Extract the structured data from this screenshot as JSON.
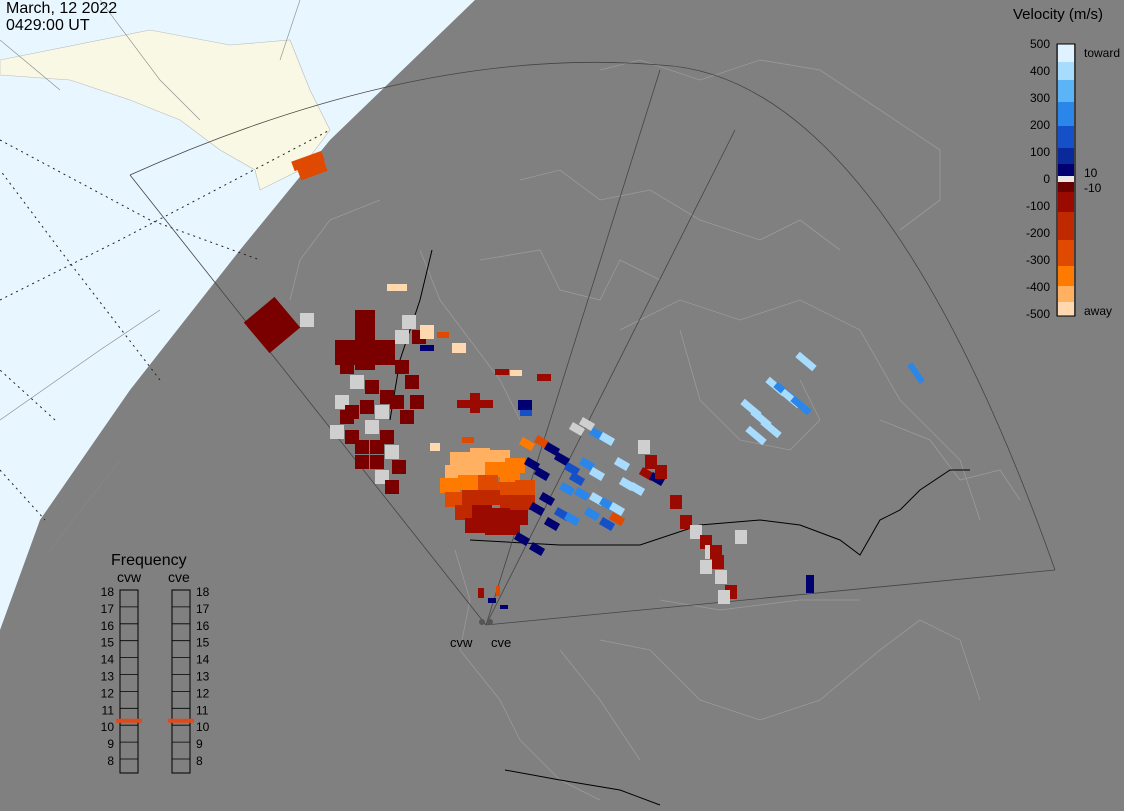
{
  "header": {
    "date": "March, 12 2022",
    "time": "0429:00 UT"
  },
  "colorbar": {
    "title": "Velocity (m/s)",
    "ticks": [
      "500",
      "400",
      "300",
      "200",
      "100",
      "0",
      "-100",
      "-200",
      "-300",
      "-400",
      "-500"
    ],
    "label_toward": "toward",
    "label_away": "away",
    "label_pos": "10",
    "label_neg": "-10",
    "colors": [
      "#dff2ff",
      "#a8dcff",
      "#5ab4f5",
      "#2a86e8",
      "#1550c8",
      "#0a2a9c",
      "#000070",
      "#e8e8e8",
      "#6a0000",
      "#9a0a00",
      "#c02800",
      "#e04a00",
      "#ff7a00",
      "#ffb060",
      "#ffd8b0"
    ]
  },
  "frequency": {
    "title": "Frequency",
    "radar_left": "cvw",
    "radar_right": "cve",
    "levels": [
      "18",
      "17",
      "16",
      "15",
      "14",
      "13",
      "12",
      "11",
      "10",
      "9",
      "8"
    ],
    "active_freq_left": 10.5,
    "active_freq_right": 10.5,
    "active_color": "#e04a1a"
  },
  "radars": {
    "west": "cvw",
    "east": "cve"
  },
  "colors": {
    "ocean": "#e8f6ff",
    "land_far": "#f8f8e4",
    "night": "#808080",
    "grid": "#aaaaaa"
  }
}
